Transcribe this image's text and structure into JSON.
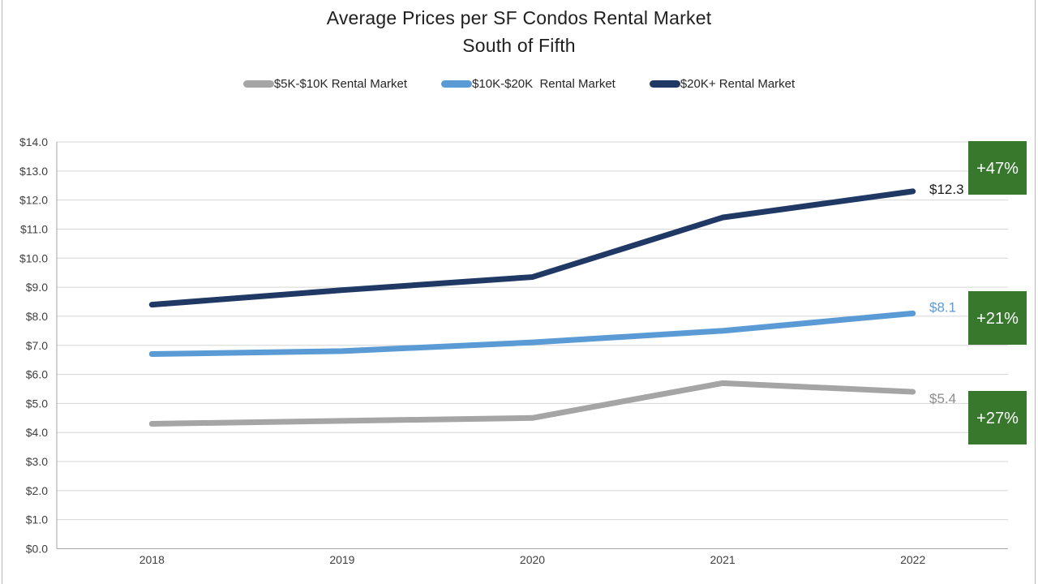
{
  "title": {
    "line1": "Average Prices per SF Condos Rental Market",
    "line2": "South of Fifth"
  },
  "chart_data": {
    "type": "line",
    "title": "Average Prices per SF Condos Rental Market",
    "subtitle": "South of Fifth",
    "categories": [
      "2018",
      "2019",
      "2020",
      "2021",
      "2022"
    ],
    "x": [
      2018,
      2019,
      2020,
      2021,
      2022
    ],
    "y_axis": {
      "min": 0,
      "max": 14,
      "step": 1,
      "tick_prefix": "$",
      "tick_decimals": 1,
      "tick_labels": [
        "$0.0",
        "$1.0",
        "$2.0",
        "$3.0",
        "$4.0",
        "$5.0",
        "$6.0",
        "$7.0",
        "$8.0",
        "$9.0",
        "$10.0",
        "$11.0",
        "$12.0",
        "$13.0",
        "$14.0"
      ]
    },
    "grid": true,
    "legend_position": "top",
    "series": [
      {
        "name": "$5K-$10K Rental Market",
        "color": "#A5A5A5",
        "values": [
          4.3,
          4.4,
          4.5,
          5.7,
          5.4
        ],
        "end_label": "$5.4",
        "end_label_color": "#8C8C8C",
        "change_badge": "+27%"
      },
      {
        "name": "$10K-$20K  Rental Market",
        "color": "#5B9BD5",
        "values": [
          6.7,
          6.8,
          7.1,
          7.5,
          8.1
        ],
        "end_label": "$8.1",
        "end_label_color": "#5B9BD5",
        "change_badge": "+21%"
      },
      {
        "name": "$20K+ Rental Market",
        "color": "#1F3864",
        "values": [
          8.4,
          8.9,
          9.35,
          11.4,
          12.3
        ],
        "end_label": "$12.3",
        "end_label_color": "#1A1A1A",
        "change_badge": "+47%"
      }
    ],
    "badge_fill_color": "#37782D",
    "badge_text_color": "#FFFFFF",
    "gridline_color": "#D6D6D6",
    "axis_line_color": "#A6A6A6",
    "tick_text_color": "#404040"
  }
}
